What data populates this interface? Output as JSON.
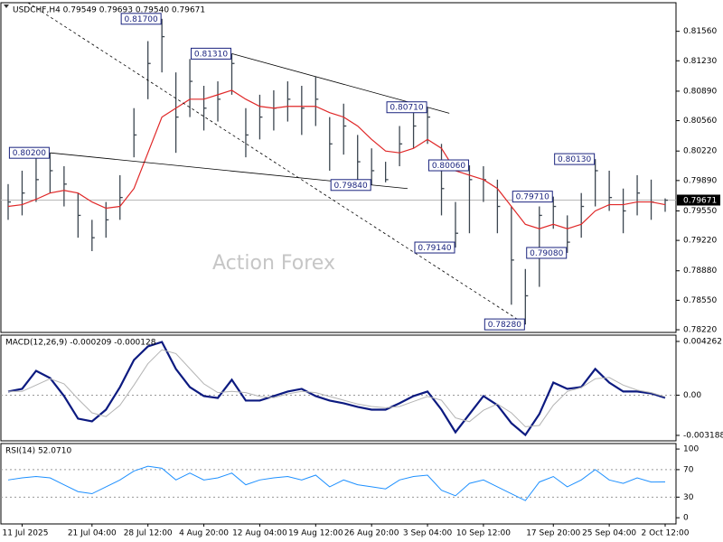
{
  "chart_data": [
    {
      "type": "ohlc",
      "title": "USDCHF,H4  0.79549 0.79693 0.79540 0.79671",
      "watermark": "Action Forex",
      "categories": [
        null,
        "11 Jul 2025",
        null,
        null,
        null,
        null,
        "21 Jul 04:00",
        null,
        null,
        null,
        "28 Jul 12:00",
        null,
        null,
        null,
        "4 Aug 20:00",
        null,
        null,
        null,
        "12 Aug 04:00",
        null,
        null,
        null,
        "19 Aug 12:00",
        null,
        null,
        null,
        "26 Aug 20:00",
        null,
        null,
        null,
        "3 Sep 04:00",
        null,
        null,
        null,
        "10 Sep 12:00",
        null,
        null,
        null,
        null,
        "17 Sep 20:00",
        null,
        null,
        null,
        "25 Sep 04:00",
        null,
        null,
        null,
        "2 Oct 12:00"
      ],
      "high": [
        0.7985,
        0.8,
        0.8025,
        0.802,
        0.8005,
        0.7975,
        0.7945,
        0.7965,
        0.7995,
        0.807,
        0.8145,
        0.817,
        0.811,
        0.8125,
        0.8095,
        0.81,
        0.8131,
        0.807,
        0.8085,
        0.809,
        0.81,
        0.8095,
        0.8105,
        0.806,
        0.8075,
        0.804,
        0.8025,
        0.801,
        0.805,
        0.8065,
        0.8071,
        0.803,
        0.7965,
        0.8006,
        0.8005,
        0.799,
        0.796,
        0.789,
        0.796,
        0.7971,
        0.795,
        0.7975,
        0.8013,
        0.8,
        0.798,
        0.7995,
        0.799,
        0.7969
      ],
      "low": [
        0.7945,
        0.795,
        0.7965,
        0.7975,
        0.796,
        0.7925,
        0.791,
        0.7925,
        0.7945,
        0.8015,
        0.808,
        0.811,
        0.802,
        0.806,
        0.8045,
        0.8055,
        0.8085,
        0.8015,
        0.8035,
        0.8045,
        0.8055,
        0.804,
        0.805,
        0.8,
        0.8018,
        0.799,
        0.7984,
        0.7987,
        0.8005,
        0.8025,
        0.803,
        0.795,
        0.7914,
        0.793,
        0.7965,
        0.793,
        0.785,
        0.7828,
        0.787,
        0.7935,
        0.7908,
        0.7925,
        0.796,
        0.7955,
        0.793,
        0.795,
        0.7945,
        0.7954
      ],
      "close": [
        0.7965,
        0.7975,
        0.799,
        0.8,
        0.7985,
        0.795,
        0.7925,
        0.7945,
        0.797,
        0.804,
        0.812,
        0.815,
        0.806,
        0.81,
        0.807,
        0.808,
        0.812,
        0.804,
        0.806,
        0.807,
        0.808,
        0.807,
        0.808,
        0.803,
        0.805,
        0.801,
        0.8,
        0.799,
        0.803,
        0.805,
        0.806,
        0.798,
        0.793,
        0.799,
        0.799,
        0.796,
        0.79,
        0.786,
        0.795,
        0.796,
        0.792,
        0.796,
        0.8,
        0.797,
        0.7955,
        0.7975,
        0.7965,
        0.7967
      ],
      "bar_color": "#3c4650",
      "ma": {
        "color": "#e02828",
        "values": [
          0.796,
          0.7962,
          0.7968,
          0.7975,
          0.7978,
          0.7975,
          0.7965,
          0.7958,
          0.796,
          0.798,
          0.802,
          0.806,
          0.807,
          0.808,
          0.808,
          0.8085,
          0.809,
          0.808,
          0.8072,
          0.807,
          0.8072,
          0.8072,
          0.8072,
          0.8065,
          0.806,
          0.805,
          0.8035,
          0.8022,
          0.802,
          0.8025,
          0.8035,
          0.8025,
          0.8,
          0.7995,
          0.799,
          0.798,
          0.796,
          0.794,
          0.7935,
          0.794,
          0.7935,
          0.794,
          0.7955,
          0.7962,
          0.7962,
          0.7965,
          0.7965,
          0.7962
        ]
      },
      "ylim": [
        0.7819,
        0.8188
      ],
      "yticks": [
        {
          "value": 0.8156,
          "label": "0.81560"
        },
        {
          "value": 0.8123,
          "label": "0.81230"
        },
        {
          "value": 0.8089,
          "label": "0.80890"
        },
        {
          "value": 0.8056,
          "label": "0.80560"
        },
        {
          "value": 0.8022,
          "label": "0.80220"
        },
        {
          "value": 0.7989,
          "label": "0.79890"
        },
        {
          "value": 0.7955,
          "label": "0.79550"
        },
        {
          "value": 0.7922,
          "label": "0.79220"
        },
        {
          "value": 0.7888,
          "label": "0.78880"
        },
        {
          "value": 0.7855,
          "label": "0.78550"
        },
        {
          "value": 0.7822,
          "label": "0.78220"
        }
      ],
      "last_price": {
        "value": 0.79671,
        "label": "0.79671"
      },
      "annotations": [
        {
          "value": 0.817,
          "label": "0.81700"
        },
        {
          "value": 0.8131,
          "label": "0.81310"
        },
        {
          "value": 0.8071,
          "label": "0.80710"
        },
        {
          "value": 0.802,
          "label": "0.80200"
        },
        {
          "value": 0.7984,
          "label": "0.79840"
        },
        {
          "value": 0.8006,
          "label": "0.80060"
        },
        {
          "value": 0.7914,
          "label": "0.79140"
        },
        {
          "value": 0.7971,
          "label": "0.79710"
        },
        {
          "value": 0.7908,
          "label": "0.79080"
        },
        {
          "value": 0.8013,
          "label": "0.80130"
        },
        {
          "value": 0.7828,
          "label": "0.78280"
        }
      ]
    },
    {
      "type": "line",
      "title": "MACD(12,26,9) -0.000209 -0.000128",
      "series": [
        {
          "color": "#0c1a80",
          "values": [
            0.00029,
            0.0005,
            0.00193,
            0.00136,
            -7e-05,
            -0.00186,
            -0.00208,
            -0.00115,
            0.00064,
            0.00279,
            0.00387,
            0.00422,
            0.00208,
            0.00064,
            -7e-05,
            -0.00022,
            0.00122,
            -0.00043,
            -0.00043,
            -7e-05,
            0.00029,
            0.0005,
            -7e-05,
            -0.00043,
            -0.00064,
            -0.00093,
            -0.00115,
            -0.00115,
            -0.00064,
            -7e-05,
            0.00029,
            -0.00115,
            -0.00294,
            -0.0015,
            -7e-05,
            -0.00079,
            -0.00222,
            -0.00315,
            -0.0015,
            0.001,
            0.0005,
            0.00064,
            0.00208,
            0.001,
            0.00029,
            0.00029,
            0.00014,
            -0.000209
          ]
        },
        {
          "color": "#b4b4b4",
          "values": [
            0.0003,
            0.0003,
            0.0008,
            0.0013,
            0.0009,
            -0.0003,
            -0.0014,
            -0.0017,
            -0.0008,
            0.0008,
            0.0025,
            0.0036,
            0.0033,
            0.0021,
            0.0009,
            0.0002,
            0.0003,
            0.0002,
            -0.0001,
            -0.0002,
            0.0001,
            0.0003,
            0.0002,
            -0.0001,
            -0.0004,
            -0.0007,
            -0.0009,
            -0.001,
            -0.0009,
            -0.0005,
            -0.0001,
            -0.0004,
            -0.0018,
            -0.0021,
            -0.0012,
            -0.0007,
            -0.0014,
            -0.0025,
            -0.0024,
            -0.0008,
            0.0003,
            0.0006,
            0.0013,
            0.0014,
            0.0008,
            0.0004,
            0.0002,
            -0.000128
          ]
        }
      ],
      "ylim": [
        -0.00362,
        0.00476
      ],
      "yticks": [
        0.004262,
        {
          "value": 0,
          "label": "0.00"
        },
        -0.003188
      ],
      "levels": [
        0
      ]
    },
    {
      "type": "line",
      "title": "RSI(14) 52.0710",
      "series": [
        {
          "color": "#1e90ff",
          "values": [
            55,
            58,
            60,
            58,
            48,
            38,
            35,
            45,
            55,
            68,
            75,
            72,
            55,
            65,
            55,
            58,
            65,
            48,
            55,
            58,
            60,
            55,
            62,
            45,
            55,
            48,
            45,
            42,
            55,
            60,
            62,
            40,
            32,
            50,
            55,
            45,
            35,
            25,
            52,
            60,
            45,
            55,
            70,
            55,
            50,
            58,
            52,
            52.071
          ]
        }
      ],
      "ylim": [
        -9,
        108
      ],
      "yticks": [
        100,
        70,
        30,
        0
      ],
      "levels": [
        70,
        30
      ]
    }
  ]
}
